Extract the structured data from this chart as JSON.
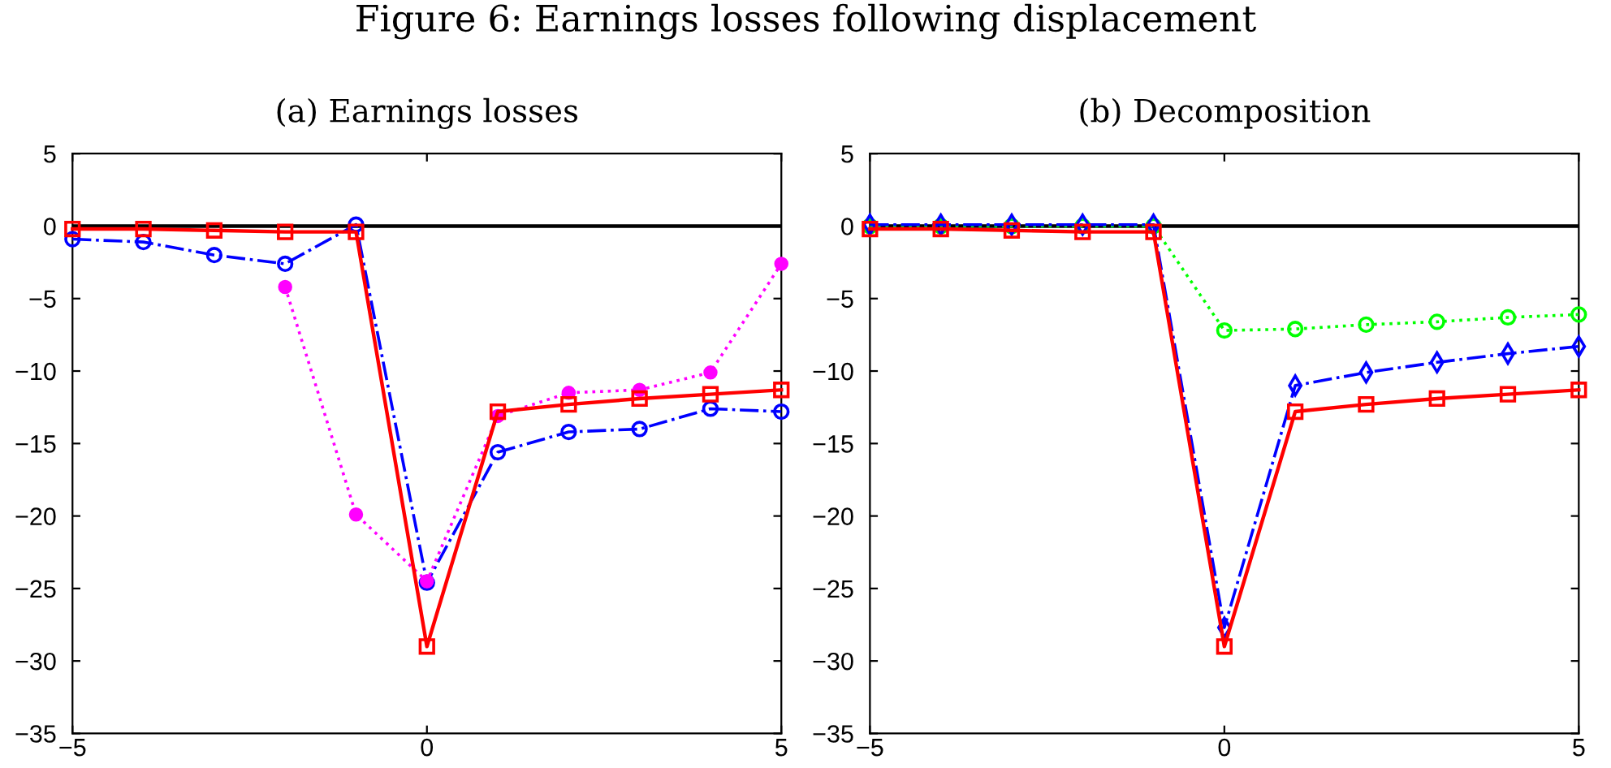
{
  "chart_data": [
    {
      "type": "line",
      "title": "Figure 6: Earnings losses following displacement",
      "subtitle": "(a) Earnings losses",
      "x": [
        -5,
        -4,
        -3,
        -2,
        -1,
        0,
        1,
        2,
        3,
        4,
        5
      ],
      "series": [
        {
          "color": "#0000ff",
          "marker": "circle",
          "line_style": "dashdot",
          "values": [
            -0.9,
            -1.1,
            -2.0,
            -2.6,
            0.1,
            -24.6,
            -15.6,
            -14.2,
            -14.0,
            -12.6,
            -12.8
          ]
        },
        {
          "color": "#ff00ff",
          "marker": "dot",
          "line_style": "dotted",
          "values": [
            null,
            null,
            null,
            -4.2,
            -19.9,
            -24.5,
            -13.1,
            -11.5,
            -11.3,
            -10.1,
            -2.6
          ]
        },
        {
          "color": "#ff0000",
          "marker": "square",
          "line_style": "solid",
          "values": [
            -0.2,
            -0.2,
            -0.3,
            -0.4,
            -0.4,
            -29.0,
            -12.8,
            -12.3,
            -11.9,
            -11.6,
            -11.3
          ]
        }
      ],
      "xlim": [
        -5,
        5
      ],
      "xticks": [
        {
          "value": -5,
          "label": "−5"
        },
        0,
        5
      ],
      "ylim": [
        -35,
        5
      ],
      "yticks": [
        {
          "value": -35,
          "label": "−35"
        },
        {
          "value": -30,
          "label": "−30"
        },
        {
          "value": -25,
          "label": "−25"
        },
        {
          "value": -20,
          "label": "−20"
        },
        {
          "value": -15,
          "label": "−15"
        },
        {
          "value": -10,
          "label": "−10"
        },
        {
          "value": -5,
          "label": "−5"
        },
        0,
        5
      ],
      "ref_lines": [
        {
          "axis": "y",
          "value": 0,
          "color": "#000000"
        }
      ],
      "grid": false,
      "legend": false
    },
    {
      "type": "line",
      "subtitle": "(b) Decomposition",
      "x": [
        -5,
        -4,
        -3,
        -2,
        -1,
        0,
        1,
        2,
        3,
        4,
        5
      ],
      "series": [
        {
          "color": "#00ff00",
          "marker": "circle",
          "line_style": "dotted",
          "values": [
            0.0,
            0.0,
            0.0,
            0.0,
            0.0,
            -7.2,
            -7.1,
            -6.8,
            -6.6,
            -6.3,
            -6.1
          ]
        },
        {
          "color": "#0000ff",
          "marker": "diamond",
          "line_style": "dashdot",
          "values": [
            0.1,
            0.1,
            0.1,
            0.1,
            0.1,
            -27.7,
            -11.0,
            -10.1,
            -9.4,
            -8.8,
            -8.3
          ]
        },
        {
          "color": "#ff0000",
          "marker": "square",
          "line_style": "solid",
          "values": [
            -0.2,
            -0.2,
            -0.3,
            -0.4,
            -0.4,
            -29.0,
            -12.8,
            -12.3,
            -11.9,
            -11.6,
            -11.3
          ]
        }
      ],
      "xlim": [
        -5,
        5
      ],
      "xticks": [
        {
          "value": -5,
          "label": "−5"
        },
        0,
        5
      ],
      "ylim": [
        -35,
        5
      ],
      "yticks": [
        {
          "value": -35,
          "label": "−35"
        },
        {
          "value": -30,
          "label": "−30"
        },
        {
          "value": -25,
          "label": "−25"
        },
        {
          "value": -20,
          "label": "−20"
        },
        {
          "value": -15,
          "label": "−15"
        },
        {
          "value": -10,
          "label": "−10"
        },
        {
          "value": -5,
          "label": "−5"
        },
        0,
        5
      ],
      "ref_lines": [
        {
          "axis": "y",
          "value": 0,
          "color": "#000000"
        }
      ],
      "grid": false,
      "legend": false
    }
  ]
}
